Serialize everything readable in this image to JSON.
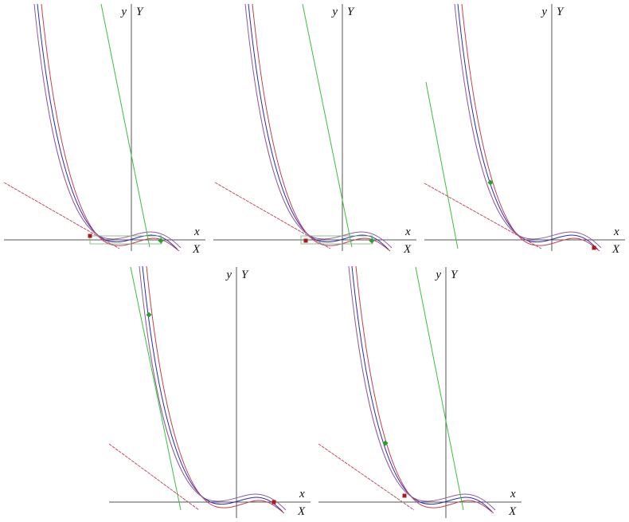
{
  "panels": [
    {
      "x_label": "x",
      "X_label": "X",
      "y_label": "y",
      "Y_label": "Y"
    },
    {
      "x_label": "x",
      "X_label": "X",
      "y_label": "y",
      "Y_label": "Y"
    },
    {
      "x_label": "x",
      "X_label": "X",
      "y_label": "y",
      "Y_label": "Y"
    },
    {
      "x_label": "x",
      "X_label": "X",
      "y_label": "y",
      "Y_label": "Y"
    },
    {
      "x_label": "x",
      "X_label": "X",
      "y_label": "y",
      "Y_label": "Y"
    }
  ]
}
